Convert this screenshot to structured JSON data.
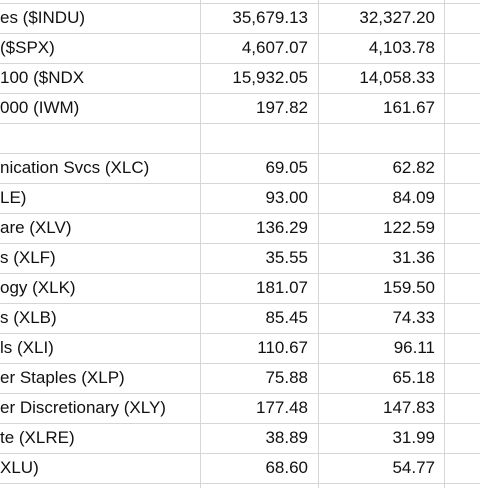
{
  "sheet": {
    "indices": [
      [
        "es ($INDU)",
        "35,679.13",
        "32,327.20"
      ],
      [
        "($SPX)",
        "4,607.07",
        "4,103.78"
      ],
      [
        "100 ($NDX",
        "15,932.05",
        "14,058.33"
      ],
      [
        "000 (IWM)",
        "197.82",
        "161.67"
      ]
    ],
    "sectors": [
      [
        "nication Svcs (XLC)",
        "69.05",
        "62.82"
      ],
      [
        "LE)",
        "93.00",
        "84.09"
      ],
      [
        "are (XLV)",
        "136.29",
        "122.59"
      ],
      [
        "s (XLF)",
        "35.55",
        "31.36"
      ],
      [
        "ogy (XLK)",
        "181.07",
        "159.50"
      ],
      [
        "s (XLB)",
        "85.45",
        "74.33"
      ],
      [
        "ls (XLI)",
        "110.67",
        "96.11"
      ],
      [
        "er Staples (XLP)",
        "75.88",
        "65.18"
      ],
      [
        "er Discretionary (XLY)",
        "177.48",
        "147.83"
      ],
      [
        "te (XLRE)",
        "38.89",
        "31.99"
      ],
      [
        "XLU)",
        "68.60",
        "54.77"
      ]
    ]
  }
}
